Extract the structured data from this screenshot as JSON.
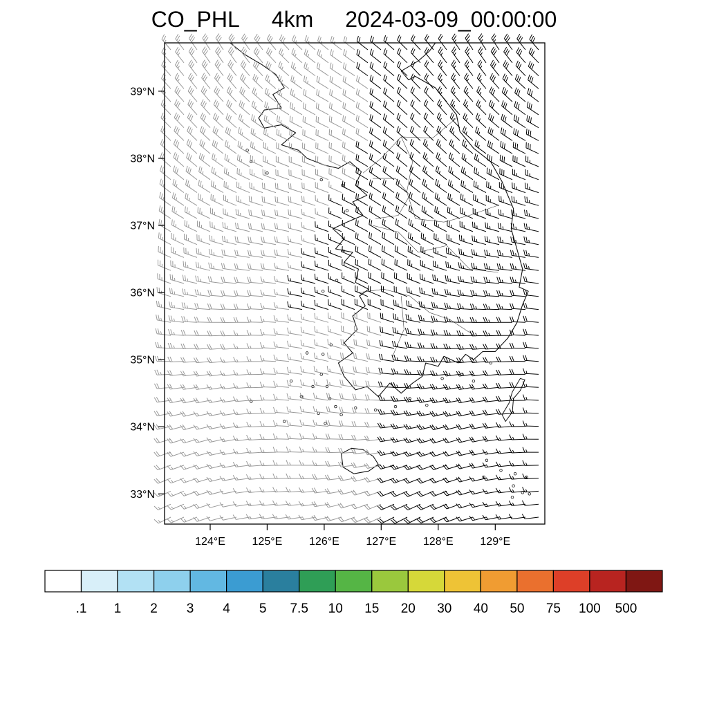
{
  "header": {
    "variable": "CO_PHL",
    "resolution": "4km",
    "timestamp": "2024-03-09_00:00:00"
  },
  "chart_data": {
    "type": "wind_barb_map",
    "title": "CO_PHL 4km 2024-03-09_00:00:00",
    "region": "Korean Peninsula",
    "map_fill": "#ffffff",
    "lon_range": [
      123.2,
      129.87
    ],
    "lat_range": [
      32.55,
      39.72
    ],
    "lat_ticks": [
      {
        "value": 39,
        "label": "39°N"
      },
      {
        "value": 38,
        "label": "38°N"
      },
      {
        "value": 37,
        "label": "37°N"
      },
      {
        "value": 36,
        "label": "36°N"
      },
      {
        "value": 35,
        "label": "35°N"
      },
      {
        "value": 34,
        "label": "34°N"
      },
      {
        "value": 33,
        "label": "33°N"
      }
    ],
    "lon_ticks": [
      {
        "value": 124,
        "label": "124°E"
      },
      {
        "value": 125,
        "label": "125°E"
      },
      {
        "value": 126,
        "label": "126°E"
      },
      {
        "value": 127,
        "label": "127°E"
      },
      {
        "value": 128,
        "label": "128°E"
      },
      {
        "value": 129,
        "label": "129°E"
      }
    ],
    "colorbar": {
      "levels": [
        0.1,
        1,
        2,
        3,
        4,
        5,
        7.5,
        10,
        15,
        20,
        30,
        40,
        50,
        75,
        100,
        500
      ],
      "tick_labels": [
        ".1",
        "1",
        "2",
        "3",
        "4",
        "5",
        "7.5",
        "10",
        "15",
        "20",
        "30",
        "40",
        "50",
        "75",
        "100",
        "500"
      ],
      "colors": [
        "#ffffff",
        "#d8eff9",
        "#b2e1f4",
        "#8ed0ed",
        "#62b8e2",
        "#3b9cd2",
        "#2a7f9e",
        "#2f9e56",
        "#55b545",
        "#9ac83d",
        "#d6d839",
        "#eec336",
        "#f09c32",
        "#ea702e",
        "#dd3f28",
        "#b82420",
        "#7f1713"
      ]
    },
    "wind_field": {
      "grid_cols": 29,
      "grid_rows": 37,
      "dir_from_top_deg": 318,
      "dir_from_bottom_deg": 252,
      "speed_kt_min": 10,
      "speed_kt_max": 25,
      "barb_color_strong": "#000000",
      "barb_color_weak": "#999999"
    },
    "geography": {
      "mainland": [
        [
          124.35,
          39.72
        ],
        [
          124.6,
          39.55
        ],
        [
          124.9,
          39.4
        ],
        [
          125.15,
          39.25
        ],
        [
          125.3,
          39.05
        ],
        [
          125.1,
          38.95
        ],
        [
          125.25,
          38.75
        ],
        [
          124.95,
          38.72
        ],
        [
          124.85,
          38.6
        ],
        [
          124.95,
          38.45
        ],
        [
          125.25,
          38.5
        ],
        [
          125.5,
          38.38
        ],
        [
          125.25,
          38.2
        ],
        [
          125.55,
          38.12
        ],
        [
          125.7,
          38.0
        ],
        [
          126.0,
          37.9
        ],
        [
          126.25,
          37.85
        ],
        [
          126.45,
          37.95
        ],
        [
          126.65,
          37.8
        ],
        [
          126.55,
          37.6
        ],
        [
          126.75,
          37.45
        ],
        [
          126.5,
          37.35
        ],
        [
          126.68,
          37.15
        ],
        [
          126.4,
          37.05
        ],
        [
          126.15,
          36.95
        ],
        [
          126.35,
          36.8
        ],
        [
          126.2,
          36.65
        ],
        [
          126.5,
          36.6
        ],
        [
          126.35,
          36.45
        ],
        [
          126.6,
          36.35
        ],
        [
          126.55,
          36.15
        ],
        [
          126.78,
          36.05
        ],
        [
          126.62,
          35.95
        ],
        [
          126.72,
          35.8
        ],
        [
          126.5,
          35.65
        ],
        [
          126.58,
          35.45
        ],
        [
          126.35,
          35.25
        ],
        [
          126.5,
          35.1
        ],
        [
          126.25,
          34.95
        ],
        [
          126.35,
          34.75
        ],
        [
          126.55,
          34.55
        ],
        [
          126.75,
          34.6
        ],
        [
          126.95,
          34.45
        ],
        [
          127.15,
          34.65
        ],
        [
          127.35,
          34.5
        ],
        [
          127.55,
          34.65
        ],
        [
          127.72,
          34.75
        ],
        [
          127.78,
          34.95
        ],
        [
          128.0,
          34.9
        ],
        [
          128.1,
          35.05
        ],
        [
          128.35,
          34.95
        ],
        [
          128.48,
          35.08
        ],
        [
          128.62,
          35.0
        ],
        [
          128.78,
          35.12
        ],
        [
          129.0,
          35.12
        ],
        [
          129.22,
          35.32
        ],
        [
          129.38,
          35.55
        ],
        [
          129.48,
          35.82
        ],
        [
          129.58,
          36.02
        ],
        [
          129.42,
          36.08
        ],
        [
          129.48,
          36.35
        ],
        [
          129.38,
          36.65
        ],
        [
          129.28,
          36.95
        ],
        [
          129.32,
          37.25
        ],
        [
          129.12,
          37.65
        ],
        [
          128.92,
          37.95
        ],
        [
          128.62,
          38.15
        ],
        [
          128.38,
          38.4
        ],
        [
          128.32,
          38.65
        ],
        [
          127.95,
          39.05
        ],
        [
          127.6,
          39.22
        ],
        [
          127.48,
          39.17
        ],
        [
          127.35,
          39.3
        ],
        [
          127.65,
          39.45
        ],
        [
          127.85,
          39.6
        ],
        [
          127.95,
          39.72
        ]
      ],
      "jeju": [
        [
          126.3,
          33.6
        ],
        [
          126.48,
          33.68
        ],
        [
          126.68,
          33.66
        ],
        [
          126.86,
          33.56
        ],
        [
          126.95,
          33.44
        ],
        [
          126.78,
          33.34
        ],
        [
          126.52,
          33.3
        ],
        [
          126.33,
          33.4
        ]
      ],
      "tsushima": [
        [
          129.18,
          34.08
        ],
        [
          129.3,
          34.22
        ],
        [
          129.32,
          34.42
        ],
        [
          129.44,
          34.54
        ],
        [
          129.52,
          34.7
        ],
        [
          129.44,
          34.72
        ],
        [
          129.3,
          34.52
        ],
        [
          129.24,
          34.35
        ],
        [
          129.12,
          34.18
        ]
      ],
      "islands": [
        [
          125.95,
          34.78
        ],
        [
          125.8,
          34.6
        ],
        [
          126.05,
          34.6
        ],
        [
          125.6,
          34.45
        ],
        [
          125.42,
          34.68
        ],
        [
          126.1,
          34.42
        ],
        [
          126.2,
          34.3
        ],
        [
          125.9,
          34.2
        ],
        [
          126.02,
          34.05
        ],
        [
          125.3,
          34.08
        ],
        [
          124.72,
          34.38
        ],
        [
          126.3,
          34.18
        ],
        [
          126.55,
          34.28
        ],
        [
          126.9,
          34.25
        ],
        [
          127.25,
          34.3
        ],
        [
          127.5,
          34.42
        ],
        [
          127.8,
          34.32
        ],
        [
          128.07,
          34.72
        ],
        [
          128.42,
          34.78
        ],
        [
          128.62,
          34.68
        ],
        [
          128.92,
          34.95
        ],
        [
          125.98,
          35.08
        ],
        [
          126.12,
          35.22
        ],
        [
          125.7,
          35.1
        ],
        [
          126.22,
          36.18
        ],
        [
          125.98,
          36.02
        ],
        [
          126.32,
          36.62
        ],
        [
          126.4,
          37.22
        ],
        [
          126.32,
          37.6
        ],
        [
          125.95,
          37.68
        ],
        [
          124.72,
          37.95
        ],
        [
          125.0,
          37.78
        ],
        [
          124.65,
          38.12
        ],
        [
          129.48,
          33.02
        ],
        [
          129.32,
          33.12
        ],
        [
          128.85,
          33.5
        ],
        [
          129.1,
          33.35
        ],
        [
          129.35,
          33.3
        ],
        [
          129.55,
          33.25
        ],
        [
          129.6,
          33.0
        ],
        [
          129.3,
          32.95
        ],
        [
          128.8,
          33.25
        ]
      ],
      "boundaries": [
        [
          [
            126.68,
            37.78
          ],
          [
            127.0,
            38.0
          ],
          [
            127.35,
            38.32
          ],
          [
            127.9,
            38.3
          ],
          [
            128.32,
            38.6
          ]
        ],
        [
          [
            127.35,
            38.32
          ],
          [
            127.55,
            37.95
          ],
          [
            127.45,
            37.5
          ],
          [
            127.6,
            37.1
          ],
          [
            128.1,
            37.05
          ],
          [
            128.55,
            37.15
          ],
          [
            129.05,
            37.3
          ]
        ],
        [
          [
            126.85,
            37.0
          ],
          [
            127.3,
            36.9
          ],
          [
            127.65,
            36.6
          ],
          [
            128.15,
            36.7
          ],
          [
            128.55,
            36.35
          ],
          [
            129.05,
            36.3
          ]
        ],
        [
          [
            126.6,
            36.0
          ],
          [
            127.05,
            36.05
          ],
          [
            127.5,
            35.95
          ],
          [
            127.85,
            35.7
          ],
          [
            128.2,
            35.6
          ],
          [
            128.65,
            35.35
          ]
        ],
        [
          [
            127.35,
            35.95
          ],
          [
            127.4,
            35.45
          ],
          [
            127.2,
            35.05
          ]
        ],
        [
          [
            126.85,
            37.7
          ],
          [
            127.25,
            37.7
          ],
          [
            127.5,
            37.45
          ],
          [
            127.3,
            37.15
          ],
          [
            126.9,
            37.1
          ]
        ]
      ]
    }
  }
}
